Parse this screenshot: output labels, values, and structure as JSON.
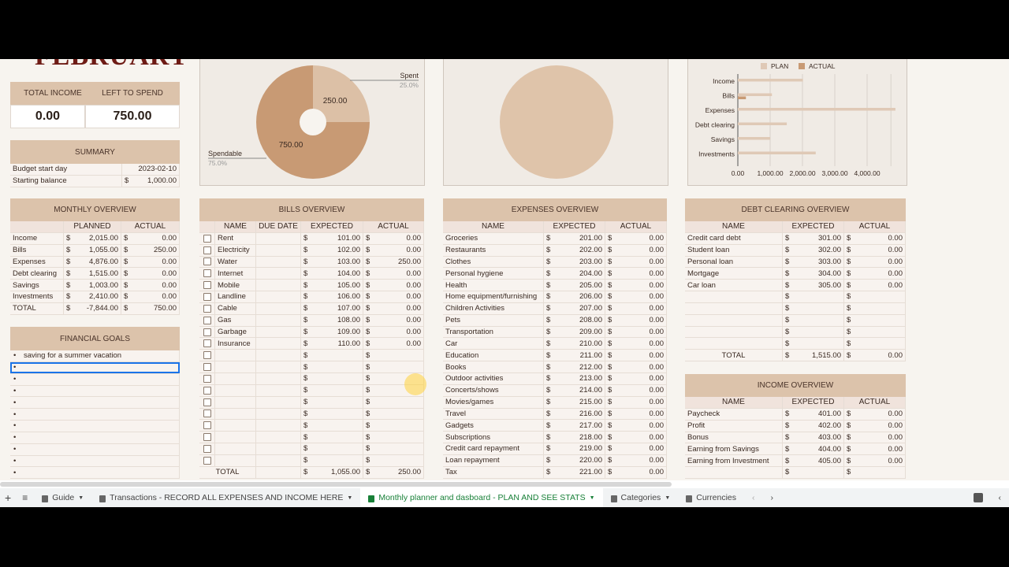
{
  "title": "FEBRUARY",
  "currency": "$",
  "kpis": {
    "total_income_label": "TOTAL INCOME",
    "left_to_spend_label": "LEFT TO SPEND",
    "total_income": "0.00",
    "left_to_spend": "750.00"
  },
  "summary": {
    "title": "SUMMARY",
    "rows": [
      [
        "Budget start day",
        "2023-02-10"
      ],
      [
        "Starting balance",
        "1,000.00"
      ]
    ]
  },
  "monthly_overview": {
    "title": "MONTHLY OVERVIEW",
    "headers": [
      "",
      "PLANNED",
      "ACTUAL"
    ],
    "rows": [
      [
        "Income",
        "2,015.00",
        "0.00"
      ],
      [
        "Bills",
        "1,055.00",
        "250.00"
      ],
      [
        "Expenses",
        "4,876.00",
        "0.00"
      ],
      [
        "Debt clearing",
        "1,515.00",
        "0.00"
      ],
      [
        "Savings",
        "1,003.00",
        "0.00"
      ],
      [
        "Investments",
        "2,410.00",
        "0.00"
      ],
      [
        "TOTAL",
        "-7,844.00",
        "750.00"
      ]
    ]
  },
  "financial_goals": {
    "title": "FINANCIAL GOALS",
    "items": [
      "saving for a summer vacation",
      "",
      "",
      "",
      "",
      "",
      "",
      "",
      "",
      "",
      ""
    ]
  },
  "bills_overview": {
    "title": "BILLS OVERVIEW",
    "headers": [
      "",
      "NAME",
      "DUE DATE",
      "EXPECTED",
      "ACTUAL"
    ],
    "rows": [
      [
        "Rent",
        "",
        "101.00",
        "0.00"
      ],
      [
        "Electricity",
        "",
        "102.00",
        "0.00"
      ],
      [
        "Water",
        "",
        "103.00",
        "250.00"
      ],
      [
        "Internet",
        "",
        "104.00",
        "0.00"
      ],
      [
        "Mobile",
        "",
        "105.00",
        "0.00"
      ],
      [
        "Landline",
        "",
        "106.00",
        "0.00"
      ],
      [
        "Cable",
        "",
        "107.00",
        "0.00"
      ],
      [
        "Gas",
        "",
        "108.00",
        "0.00"
      ],
      [
        "Garbage",
        "",
        "109.00",
        "0.00"
      ],
      [
        "Insurance",
        "",
        "110.00",
        "0.00"
      ],
      [
        "",
        "",
        "",
        ""
      ],
      [
        "",
        "",
        "",
        ""
      ],
      [
        "",
        "",
        "",
        ""
      ],
      [
        "",
        "",
        "",
        ""
      ],
      [
        "",
        "",
        "",
        ""
      ],
      [
        "",
        "",
        "",
        ""
      ],
      [
        "",
        "",
        "",
        ""
      ],
      [
        "",
        "",
        "",
        ""
      ],
      [
        "",
        "",
        "",
        ""
      ],
      [
        "",
        "",
        "",
        ""
      ]
    ],
    "total": [
      "TOTAL",
      "",
      "1,055.00",
      "250.00"
    ]
  },
  "expenses_overview": {
    "title": "EXPENSES OVERVIEW",
    "headers": [
      "NAME",
      "EXPECTED",
      "ACTUAL"
    ],
    "rows": [
      [
        "Groceries",
        "201.00",
        "0.00"
      ],
      [
        "Restaurants",
        "202.00",
        "0.00"
      ],
      [
        "Clothes",
        "203.00",
        "0.00"
      ],
      [
        "Personal hygiene",
        "204.00",
        "0.00"
      ],
      [
        "Health",
        "205.00",
        "0.00"
      ],
      [
        "Home equipment/furnishing",
        "206.00",
        "0.00"
      ],
      [
        "Children Activities",
        "207.00",
        "0.00"
      ],
      [
        "Pets",
        "208.00",
        "0.00"
      ],
      [
        "Transportation",
        "209.00",
        "0.00"
      ],
      [
        "Car",
        "210.00",
        "0.00"
      ],
      [
        "Education",
        "211.00",
        "0.00"
      ],
      [
        "Books",
        "212.00",
        "0.00"
      ],
      [
        "Outdoor activities",
        "213.00",
        "0.00"
      ],
      [
        "Concerts/shows",
        "214.00",
        "0.00"
      ],
      [
        "Movies/games",
        "215.00",
        "0.00"
      ],
      [
        "Travel",
        "216.00",
        "0.00"
      ],
      [
        "Gadgets",
        "217.00",
        "0.00"
      ],
      [
        "Subscriptions",
        "218.00",
        "0.00"
      ],
      [
        "Credit card repayment",
        "219.00",
        "0.00"
      ],
      [
        "Loan repayment",
        "220.00",
        "0.00"
      ],
      [
        "Tax",
        "221.00",
        "0.00"
      ]
    ]
  },
  "debt_clearing_overview": {
    "title": "DEBT CLEARING OVERVIEW",
    "headers": [
      "NAME",
      "EXPECTED",
      "ACTUAL"
    ],
    "rows": [
      [
        "Credit card debt",
        "301.00",
        "0.00"
      ],
      [
        "Student loan",
        "302.00",
        "0.00"
      ],
      [
        "Personal loan",
        "303.00",
        "0.00"
      ],
      [
        "Mortgage",
        "304.00",
        "0.00"
      ],
      [
        "Car loan",
        "305.00",
        "0.00"
      ],
      [
        "",
        "",
        ""
      ],
      [
        "",
        "",
        ""
      ],
      [
        "",
        "",
        ""
      ],
      [
        "",
        "",
        ""
      ],
      [
        "",
        "",
        ""
      ],
      [
        "TOTAL",
        "1,515.00",
        "0.00"
      ]
    ]
  },
  "income_overview": {
    "title": "INCOME OVERVIEW",
    "headers": [
      "NAME",
      "EXPECTED",
      "ACTUAL"
    ],
    "rows": [
      [
        "Paycheck",
        "401.00",
        "0.00"
      ],
      [
        "Profit",
        "402.00",
        "0.00"
      ],
      [
        "Bonus",
        "403.00",
        "0.00"
      ],
      [
        "Earning from Savings",
        "404.00",
        "0.00"
      ],
      [
        "Earning from Investment",
        "405.00",
        "0.00"
      ],
      [
        "",
        "",
        ""
      ]
    ]
  },
  "chart_data": [
    {
      "type": "pie",
      "donut": true,
      "slices": [
        {
          "name": "Spent",
          "value": 250,
          "label": "250.00",
          "percent": "25.0%",
          "color": "#dcc0a6"
        },
        {
          "name": "Spendable",
          "value": 750,
          "label": "750.00",
          "percent": "75.0%",
          "color": "#c89a74"
        }
      ]
    },
    {
      "type": "pie",
      "slices": [
        {
          "value": 1,
          "color": "#dfc4aa"
        }
      ]
    },
    {
      "type": "bar",
      "orientation": "horizontal",
      "categories": [
        "Income",
        "Bills",
        "Expenses",
        "Debt clearing",
        "Savings",
        "Investments"
      ],
      "series": [
        {
          "name": "PLAN",
          "values": [
            2015,
            1055,
            4876,
            1515,
            1003,
            2410
          ],
          "color": "#dfc9b6"
        },
        {
          "name": "ACTUAL",
          "values": [
            0,
            250,
            0,
            0,
            0,
            0
          ],
          "color": "#c89a74"
        }
      ],
      "xlim": [
        0,
        5000
      ],
      "xticks": [
        "0.00",
        "1,000.00",
        "2,000.00",
        "3,000.00",
        "4,000.00"
      ],
      "xtick_values": [
        0,
        1000,
        2000,
        3000,
        4000
      ],
      "legend": "top",
      "grid": true
    }
  ],
  "tabs": [
    {
      "label": "Guide"
    },
    {
      "label": "Transactions - RECORD ALL EXPENSES AND INCOME HERE"
    },
    {
      "label": "Monthly planner and dasboard - PLAN AND SEE STATS",
      "active": true
    },
    {
      "label": "Categories"
    },
    {
      "label": "Currencies"
    }
  ]
}
